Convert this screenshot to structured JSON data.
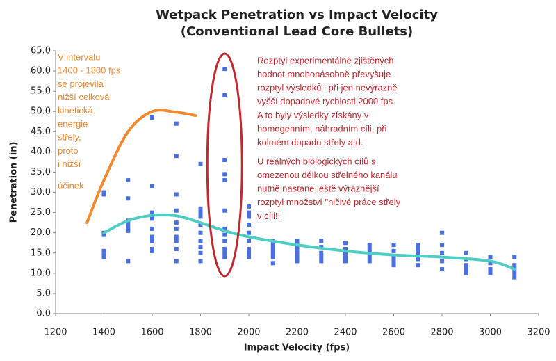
{
  "chart_data": {
    "type": "scatter",
    "title": "Wetpack Penetration vs Impact Velocity",
    "subtitle": "(Conventional Lead Core Bullets)",
    "x_label": "Impact Velocity (fps)",
    "y_label": "Penetration (in)",
    "color": "#4a6fe0",
    "x": [
      1400,
      1400,
      1400,
      1400,
      1400,
      1400,
      1400,
      1500,
      1500,
      1500,
      1500,
      1500,
      1500,
      1500,
      1600,
      1600,
      1600,
      1600,
      1600,
      1600,
      1600,
      1600,
      1600,
      1700,
      1700,
      1700,
      1700,
      1700,
      1700,
      1700,
      1700,
      1700,
      1700,
      1800,
      1800,
      1800,
      1800,
      1800,
      1800,
      1800,
      1800,
      1800,
      1800,
      1900,
      1900,
      1900,
      1900,
      1900,
      1900,
      1900,
      1900,
      1900,
      1900,
      1900,
      1900,
      2000,
      2000,
      2000,
      2000,
      2000,
      2000,
      2000,
      2000,
      2000,
      2100,
      2100,
      2100,
      2100,
      2100,
      2100,
      2200,
      2200,
      2200,
      2200,
      2200,
      2200,
      2300,
      2300,
      2300,
      2300,
      2300,
      2400,
      2400,
      2400,
      2400,
      2400,
      2500,
      2500,
      2500,
      2500,
      2500,
      2600,
      2600,
      2600,
      2600,
      2600,
      2700,
      2700,
      2700,
      2700,
      2700,
      2800,
      2800,
      2800,
      2800,
      2800,
      2900,
      2900,
      2900,
      2900,
      2900,
      3000,
      3000,
      3000,
      3000,
      3100,
      3100,
      3100,
      3100,
      3100
    ],
    "values": [
      30,
      29.5,
      20,
      19.5,
      15.5,
      14.5,
      14,
      33,
      28.5,
      23,
      22,
      21,
      20.5,
      13,
      48.5,
      31.5,
      25,
      23.5,
      21,
      19,
      18,
      16,
      15.5,
      47,
      39,
      29.5,
      25.5,
      22.5,
      21,
      19,
      18,
      16,
      13,
      37,
      26,
      25,
      24,
      22,
      20,
      18,
      16.5,
      15,
      13,
      60.5,
      54,
      38,
      34.5,
      33,
      25.5,
      21,
      19.5,
      18,
      16,
      15,
      14,
      26.5,
      25,
      24,
      22,
      20,
      18,
      16,
      15,
      14,
      18,
      17,
      16,
      15,
      14,
      12.5,
      18,
      17,
      16,
      15,
      14,
      13,
      18,
      16.5,
      15,
      14,
      13,
      17.5,
      16,
      15,
      14,
      13,
      17,
      16,
      15,
      14,
      13,
      17,
      15.5,
      14,
      13,
      12,
      17,
      16,
      15,
      13.5,
      12,
      20,
      17,
      15,
      13,
      11,
      15,
      13.5,
      12,
      11,
      10,
      14,
      12.5,
      11,
      10,
      14,
      12,
      11,
      10,
      9
    ],
    "curves": [
      {
        "color": "#4ecdc4",
        "x": [
          1400,
          1500,
          1600,
          1700,
          1800,
          1900,
          2000,
          2200,
          2400,
          2600,
          2800,
          3000,
          3100
        ],
        "values": [
          20,
          23,
          24.3,
          24.2,
          22.5,
          20.5,
          19,
          17,
          15.5,
          14.5,
          14,
          13,
          11
        ]
      },
      {
        "color": "#f08a30",
        "x": [
          1330,
          1400,
          1500,
          1600,
          1700,
          1780
        ],
        "values": [
          22.5,
          33,
          45,
          50,
          49.8,
          49
        ]
      }
    ],
    "xlim": [
      1200,
      3200
    ],
    "xticks": [
      1200,
      1400,
      1600,
      1800,
      2000,
      2200,
      2400,
      2600,
      2800,
      3000,
      3200
    ],
    "ylim": [
      0,
      65
    ],
    "yticks": [
      {
        "value": 0,
        "label": "0.0"
      },
      {
        "value": 5,
        "label": "5.0"
      },
      {
        "value": 10,
        "label": "10.0"
      },
      {
        "value": 15,
        "label": "15.0"
      },
      {
        "value": 20,
        "label": "20.0"
      },
      {
        "value": 25,
        "label": "25.0"
      },
      {
        "value": 30,
        "label": "30.0"
      },
      {
        "value": 35,
        "label": "35.0"
      },
      {
        "value": 40,
        "label": "40.0"
      },
      {
        "value": 45,
        "label": "45.0"
      },
      {
        "value": 50,
        "label": "50.0"
      },
      {
        "value": 55,
        "label": "55.0"
      },
      {
        "value": 60,
        "label": "60.0"
      },
      {
        "value": 65,
        "label": "65.0"
      }
    ],
    "highlight": {
      "x": 1900,
      "color": "#c0292f"
    },
    "annotations": [
      {
        "color": "#f08a30",
        "lines": [
          "V intervalu",
          "1400 - 1800 fps",
          "se projevila",
          "nižší celková",
          "kinetická",
          "energie",
          "střely,",
          "proto",
          "i nižší"
        ]
      },
      {
        "color": "#f08a30",
        "lines": [
          "účinek"
        ]
      },
      {
        "color": "#c0292f",
        "lines": [
          "Rozptyl experimentálně zjištěných",
          "hodnot mnohonásobně převyšuje",
          "rozptyl výsledků i při jen nevýrazně",
          "vyšší dopadové rychlosti 2000 fps.",
          "A to byly výsledky získány v",
          "homogenním, náhradním cíli, při",
          "kolmém dopadu střely atd."
        ]
      },
      {
        "color": "#c0292f",
        "lines": [
          "U reálných biologických cílů s",
          "omezenou délkou střelného kanálu",
          "nutně nastane ještě výraznější",
          "rozptyl množství \"ničivé práce střely",
          "v cíli!!"
        ]
      }
    ]
  }
}
